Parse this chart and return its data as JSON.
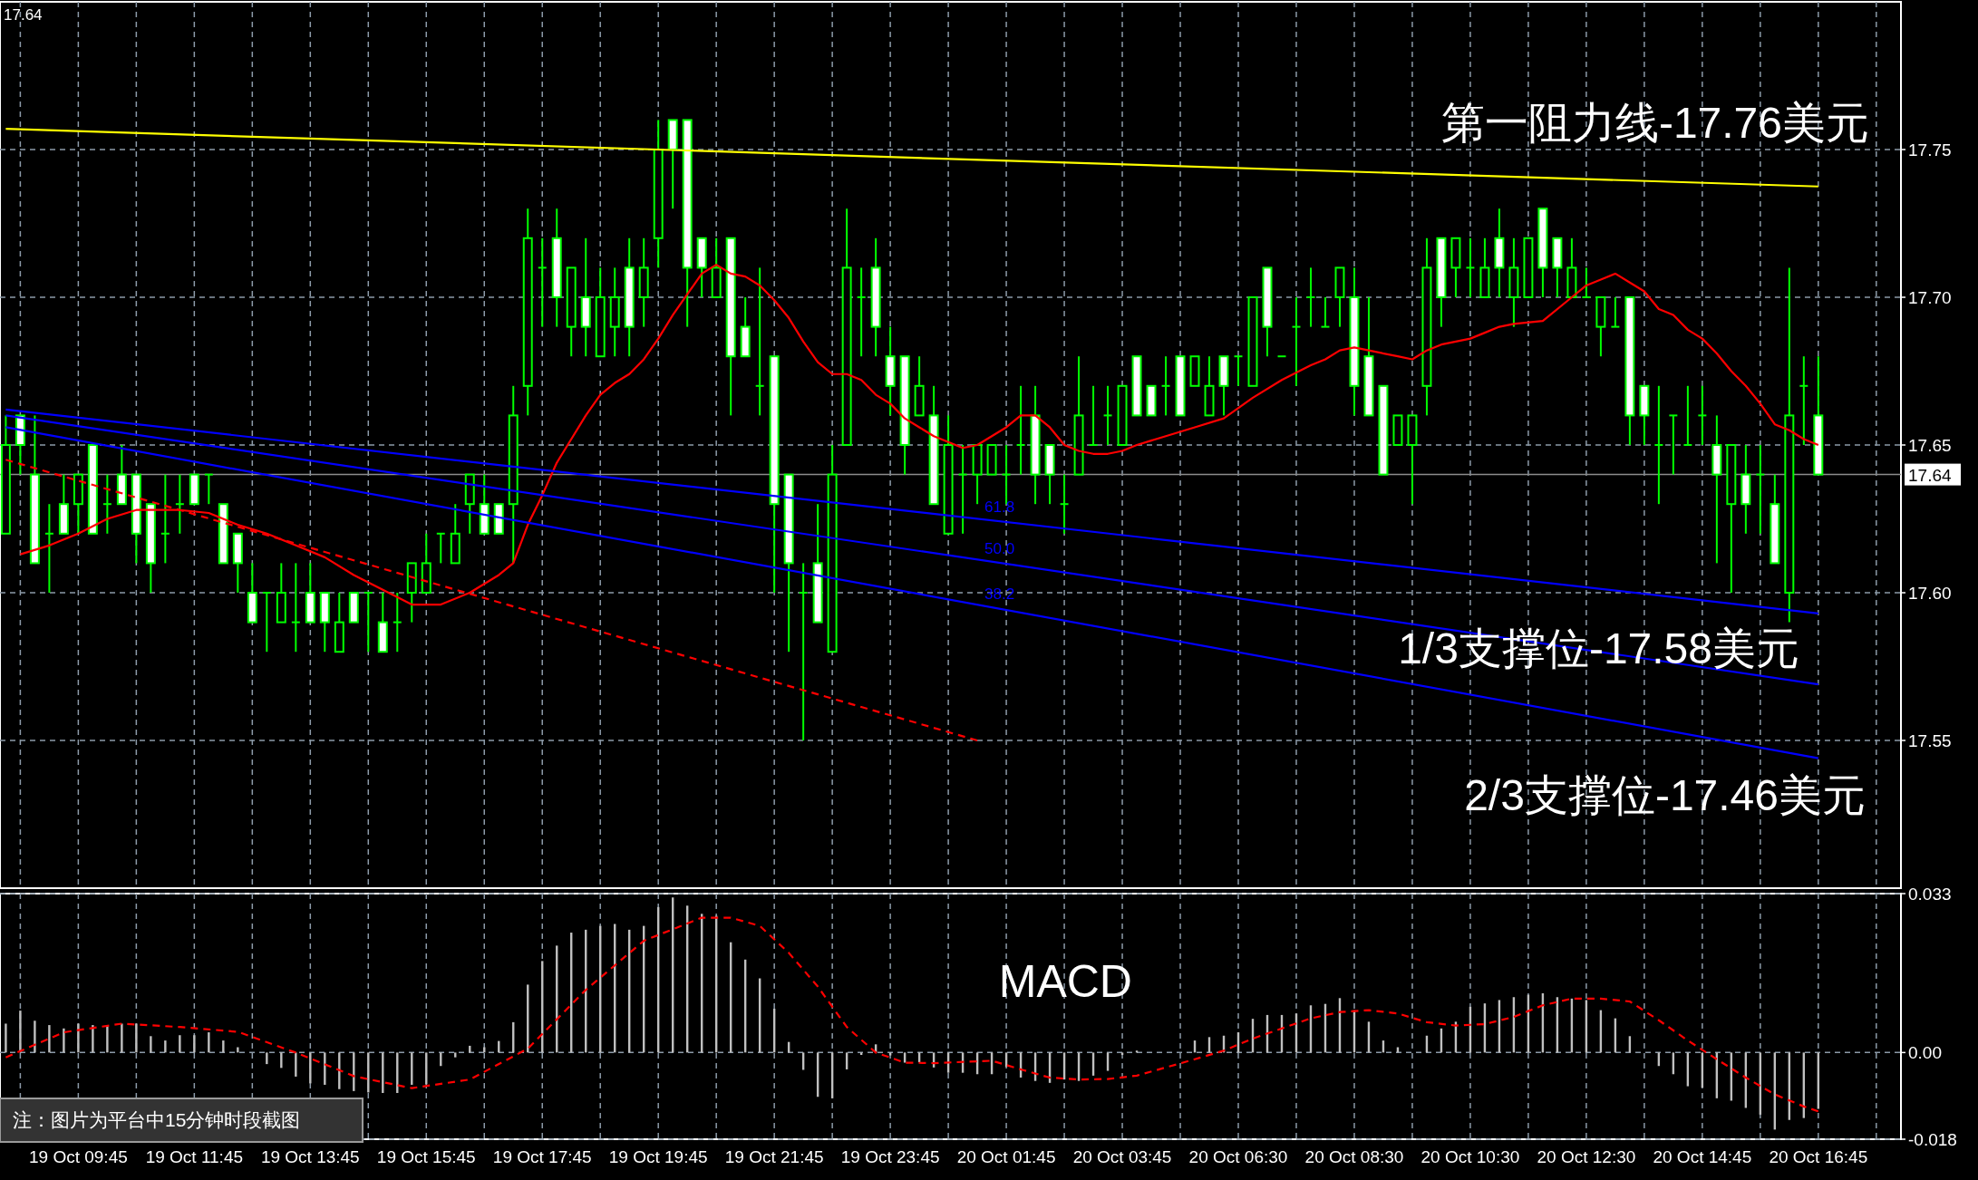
{
  "chart_data": [
    {
      "type": "candlestick",
      "color": "#00ff00",
      "tick_labels": "y",
      "grid": true,
      "categories": [
        null,
        null,
        null,
        null,
        null,
        null,
        null,
        null,
        null,
        null,
        null,
        null,
        null,
        null,
        null,
        null,
        null,
        null,
        null,
        null,
        null,
        null,
        null,
        null,
        null,
        null,
        null,
        null,
        null,
        null,
        null,
        null,
        null,
        null,
        null,
        null,
        null,
        null,
        null,
        null,
        null,
        null,
        null,
        null,
        null,
        null,
        null,
        null,
        null,
        null,
        null,
        null,
        null,
        null,
        null,
        null,
        null,
        null,
        null,
        null,
        null,
        null,
        null,
        null,
        null,
        null,
        null,
        null,
        null,
        null,
        null,
        null,
        null,
        null,
        null,
        null,
        null,
        null,
        null,
        null,
        null,
        null,
        null,
        null,
        null,
        null,
        null,
        null,
        null,
        null,
        null,
        null,
        null,
        null,
        null,
        null,
        null,
        null,
        null,
        null,
        null,
        null,
        null,
        null,
        null,
        null,
        null,
        null,
        null,
        null,
        null,
        null,
        null,
        null,
        null,
        null,
        null,
        null,
        null,
        null,
        null,
        null,
        null,
        null,
        null,
        null
      ],
      "ohlc": [
        [
          17.62,
          17.66,
          17.62,
          17.65
        ],
        [
          17.66,
          17.66,
          17.64,
          17.65
        ],
        [
          17.64,
          17.66,
          17.61,
          17.61
        ],
        [
          17.62,
          17.63,
          17.6,
          17.62
        ],
        [
          17.63,
          17.64,
          17.62,
          17.62
        ],
        [
          17.63,
          17.64,
          17.62,
          17.64
        ],
        [
          17.65,
          17.65,
          17.62,
          17.62
        ],
        [
          17.63,
          17.64,
          17.62,
          17.63
        ],
        [
          17.64,
          17.65,
          17.63,
          17.63
        ],
        [
          17.64,
          17.64,
          17.61,
          17.62
        ],
        [
          17.63,
          17.63,
          17.6,
          17.61
        ],
        [
          17.62,
          17.64,
          17.61,
          17.62
        ],
        [
          17.63,
          17.64,
          17.62,
          17.63
        ],
        [
          17.64,
          17.64,
          17.63,
          17.63
        ],
        [
          17.64,
          17.64,
          17.63,
          17.64
        ],
        [
          17.63,
          17.63,
          17.61,
          17.61
        ],
        [
          17.62,
          17.62,
          17.6,
          17.61
        ],
        [
          17.6,
          17.61,
          17.59,
          17.59
        ],
        [
          17.6,
          17.6,
          17.58,
          17.6
        ],
        [
          17.59,
          17.61,
          17.59,
          17.6
        ],
        [
          17.59,
          17.61,
          17.58,
          17.59
        ],
        [
          17.6,
          17.61,
          17.59,
          17.59
        ],
        [
          17.6,
          17.6,
          17.58,
          17.59
        ],
        [
          17.58,
          17.6,
          17.58,
          17.59
        ],
        [
          17.6,
          17.6,
          17.59,
          17.59
        ],
        [
          17.6,
          17.6,
          17.58,
          17.6
        ],
        [
          17.59,
          17.6,
          17.58,
          17.58
        ],
        [
          17.59,
          17.6,
          17.58,
          17.59
        ],
        [
          17.6,
          17.61,
          17.59,
          17.61
        ],
        [
          17.6,
          17.62,
          17.6,
          17.61
        ],
        [
          17.62,
          17.62,
          17.61,
          17.62
        ],
        [
          17.61,
          17.63,
          17.61,
          17.62
        ],
        [
          17.63,
          17.64,
          17.62,
          17.64
        ],
        [
          17.63,
          17.64,
          17.62,
          17.62
        ],
        [
          17.63,
          17.63,
          17.62,
          17.62
        ],
        [
          17.63,
          17.67,
          17.61,
          17.66
        ],
        [
          17.67,
          17.73,
          17.66,
          17.72
        ],
        [
          17.71,
          17.72,
          17.69,
          17.71
        ],
        [
          17.72,
          17.73,
          17.69,
          17.7
        ],
        [
          17.69,
          17.71,
          17.68,
          17.71
        ],
        [
          17.7,
          17.72,
          17.68,
          17.69
        ],
        [
          17.68,
          17.71,
          17.68,
          17.7
        ],
        [
          17.69,
          17.71,
          17.68,
          17.7
        ],
        [
          17.71,
          17.72,
          17.68,
          17.69
        ],
        [
          17.7,
          17.72,
          17.69,
          17.71
        ],
        [
          17.72,
          17.76,
          17.71,
          17.75
        ],
        [
          17.76,
          17.76,
          17.73,
          17.75
        ],
        [
          17.76,
          17.76,
          17.69,
          17.71
        ],
        [
          17.72,
          17.72,
          17.7,
          17.71
        ],
        [
          17.7,
          17.72,
          17.7,
          17.71
        ],
        [
          17.72,
          17.72,
          17.66,
          17.68
        ],
        [
          17.69,
          17.7,
          17.68,
          17.68
        ],
        [
          17.67,
          17.71,
          17.66,
          17.67
        ],
        [
          17.68,
          17.68,
          17.6,
          17.63
        ],
        [
          17.64,
          17.64,
          17.58,
          17.61
        ],
        [
          17.6,
          17.61,
          17.55,
          17.6
        ],
        [
          17.61,
          17.63,
          17.59,
          17.59
        ],
        [
          17.58,
          17.65,
          17.58,
          17.64
        ],
        [
          17.65,
          17.73,
          17.65,
          17.71
        ],
        [
          17.7,
          17.71,
          17.68,
          17.7
        ],
        [
          17.71,
          17.72,
          17.68,
          17.69
        ],
        [
          17.68,
          17.69,
          17.66,
          17.67
        ],
        [
          17.68,
          17.68,
          17.64,
          17.65
        ],
        [
          17.66,
          17.68,
          17.66,
          17.67
        ],
        [
          17.66,
          17.67,
          17.63,
          17.63
        ],
        [
          17.62,
          17.66,
          17.62,
          17.65
        ],
        [
          17.64,
          17.65,
          17.62,
          17.64
        ],
        [
          17.64,
          17.65,
          17.63,
          17.65
        ],
        [
          17.64,
          17.65,
          17.64,
          17.65
        ],
        [
          17.64,
          17.65,
          17.63,
          17.64
        ],
        [
          17.65,
          17.67,
          17.64,
          17.65
        ],
        [
          17.66,
          17.67,
          17.63,
          17.64
        ],
        [
          17.65,
          17.65,
          17.63,
          17.64
        ],
        [
          17.63,
          17.64,
          17.62,
          17.63
        ],
        [
          17.64,
          17.68,
          17.64,
          17.66
        ],
        [
          17.65,
          17.67,
          17.65,
          17.65
        ],
        [
          17.66,
          17.67,
          17.65,
          17.66
        ],
        [
          17.65,
          17.67,
          17.65,
          17.67
        ],
        [
          17.68,
          17.68,
          17.66,
          17.66
        ],
        [
          17.67,
          17.67,
          17.66,
          17.66
        ],
        [
          17.67,
          17.68,
          17.66,
          17.67
        ],
        [
          17.68,
          17.68,
          17.66,
          17.66
        ],
        [
          17.67,
          17.68,
          17.67,
          17.68
        ],
        [
          17.66,
          17.68,
          17.66,
          17.67
        ],
        [
          17.68,
          17.68,
          17.66,
          17.67
        ],
        [
          17.68,
          17.68,
          17.67,
          17.68
        ],
        [
          17.67,
          17.7,
          17.67,
          17.7
        ],
        [
          17.71,
          17.71,
          17.68,
          17.69
        ],
        [
          17.68,
          17.68,
          17.68,
          17.68
        ],
        [
          17.69,
          17.7,
          17.67,
          17.69
        ],
        [
          17.7,
          17.71,
          17.69,
          17.7
        ],
        [
          17.69,
          17.7,
          17.69,
          17.69
        ],
        [
          17.7,
          17.71,
          17.69,
          17.71
        ],
        [
          17.7,
          17.71,
          17.66,
          17.67
        ],
        [
          17.68,
          17.7,
          17.66,
          17.66
        ],
        [
          17.67,
          17.67,
          17.64,
          17.64
        ],
        [
          17.65,
          17.66,
          17.65,
          17.66
        ],
        [
          17.65,
          17.66,
          17.63,
          17.66
        ],
        [
          17.67,
          17.72,
          17.66,
          17.71
        ],
        [
          17.72,
          17.72,
          17.69,
          17.7
        ],
        [
          17.71,
          17.72,
          17.7,
          17.72
        ],
        [
          17.71,
          17.72,
          17.7,
          17.71
        ],
        [
          17.7,
          17.72,
          17.7,
          17.71
        ],
        [
          17.72,
          17.73,
          17.7,
          17.71
        ],
        [
          17.7,
          17.72,
          17.69,
          17.71
        ],
        [
          17.7,
          17.72,
          17.7,
          17.72
        ],
        [
          17.73,
          17.73,
          17.7,
          17.71
        ],
        [
          17.72,
          17.72,
          17.7,
          17.71
        ],
        [
          17.7,
          17.72,
          17.7,
          17.71
        ],
        [
          17.7,
          17.71,
          17.7,
          17.7
        ],
        [
          17.69,
          17.7,
          17.68,
          17.7
        ],
        [
          17.69,
          17.7,
          17.69,
          17.69
        ],
        [
          17.7,
          17.7,
          17.65,
          17.66
        ],
        [
          17.67,
          17.67,
          17.65,
          17.66
        ],
        [
          17.65,
          17.67,
          17.63,
          17.65
        ],
        [
          17.66,
          17.66,
          17.64,
          17.66
        ],
        [
          17.65,
          17.67,
          17.65,
          17.65
        ],
        [
          17.66,
          17.67,
          17.65,
          17.66
        ],
        [
          17.65,
          17.66,
          17.61,
          17.64
        ],
        [
          17.63,
          17.65,
          17.6,
          17.65
        ],
        [
          17.64,
          17.65,
          17.62,
          17.63
        ],
        [
          17.64,
          17.65,
          17.62,
          17.64
        ],
        [
          17.63,
          17.64,
          17.61,
          17.61
        ],
        [
          17.6,
          17.71,
          17.59,
          17.66
        ],
        [
          17.67,
          17.68,
          17.65,
          17.67
        ],
        [
          17.66,
          17.68,
          17.64,
          17.64
        ]
      ],
      "series": [
        {
          "type": "line",
          "color": "#ff0000",
          "values": [
            null,
            17.613,
            null,
            17.616,
            null,
            17.62,
            null,
            17.625,
            null,
            17.628,
            17.628,
            null,
            17.628,
            null,
            17.627,
            null,
            17.623,
            null,
            17.62,
            null,
            17.616,
            null,
            17.612,
            null,
            17.606,
            null,
            17.601,
            null,
            17.596,
            null,
            17.596,
            null,
            17.6,
            null,
            17.606,
            17.61,
            17.623,
            17.633,
            17.644,
            17.652,
            17.66,
            17.667,
            17.671,
            17.674,
            17.679,
            17.686,
            17.694,
            17.701,
            17.708,
            17.711,
            17.708,
            17.707,
            17.704,
            17.699,
            17.693,
            17.685,
            17.678,
            17.674,
            17.674,
            17.672,
            17.667,
            17.664,
            17.659,
            17.656,
            17.653,
            17.651,
            17.649,
            17.65,
            17.653,
            17.656,
            17.66,
            17.66,
            17.656,
            17.65,
            17.648,
            17.647,
            17.647,
            17.648,
            17.65,
            null,
            17.653,
            null,
            17.656,
            null,
            17.659,
            null,
            17.666,
            null,
            17.672,
            null,
            17.677,
            17.679,
            17.682,
            17.683,
            17.682,
            null,
            17.68,
            17.679,
            17.682,
            17.684,
            null,
            17.686,
            17.688,
            17.69,
            17.691,
            null,
            17.692,
            null,
            17.7,
            17.704,
            17.706,
            17.708,
            17.705,
            17.702,
            17.696,
            17.694,
            17.689,
            17.686,
            17.681,
            17.675,
            17.67,
            17.664,
            17.657,
            17.655,
            17.652,
            17.65
          ]
        },
        {
          "type": "line",
          "color": "#ff0000",
          "line_style": "dashed",
          "values": [
            17.645,
            null,
            null,
            null,
            null,
            null,
            null,
            null,
            null,
            null,
            null,
            null,
            null,
            null,
            null,
            null,
            null,
            null,
            null,
            null,
            null,
            null,
            null,
            null,
            null,
            null,
            null,
            null,
            null,
            null,
            null,
            null,
            null,
            null,
            null,
            null,
            null,
            null,
            null,
            null,
            null,
            null,
            null,
            null,
            null,
            null,
            null,
            null,
            null,
            null,
            null,
            null,
            null,
            null,
            null,
            null,
            null,
            null,
            null,
            null,
            null,
            null,
            null,
            null,
            null,
            null,
            null,
            17.55,
            null,
            null,
            null,
            null,
            null,
            null,
            null,
            null,
            null,
            null,
            null,
            null,
            null,
            null,
            null,
            null,
            null,
            null,
            null,
            null,
            null,
            null,
            null,
            null,
            null,
            null,
            null,
            null,
            null,
            null,
            null,
            null,
            null,
            null,
            null,
            null,
            null,
            null,
            null,
            null,
            null,
            null,
            null,
            null,
            null,
            null,
            null,
            null,
            null,
            null,
            null,
            null,
            null,
            null,
            null,
            null,
            null,
            null
          ]
        },
        {
          "type": "line",
          "color": "#ffff00",
          "values": [
            17.757,
            null,
            null,
            null,
            null,
            null,
            null,
            null,
            null,
            null,
            null,
            null,
            null,
            null,
            null,
            null,
            null,
            null,
            null,
            null,
            null,
            null,
            null,
            null,
            null,
            null,
            null,
            null,
            null,
            null,
            null,
            null,
            null,
            null,
            null,
            null,
            null,
            null,
            null,
            null,
            null,
            null,
            null,
            null,
            null,
            null,
            null,
            null,
            null,
            null,
            null,
            null,
            null,
            null,
            null,
            null,
            null,
            null,
            null,
            null,
            null,
            null,
            null,
            null,
            null,
            null,
            null,
            null,
            null,
            null,
            null,
            null,
            null,
            null,
            null,
            null,
            null,
            null,
            null,
            null,
            null,
            null,
            null,
            null,
            null,
            null,
            null,
            null,
            null,
            null,
            null,
            null,
            null,
            null,
            null,
            null,
            null,
            null,
            null,
            null,
            null,
            null,
            null,
            null,
            null,
            null,
            null,
            null,
            null,
            null,
            null,
            null,
            null,
            null,
            null,
            null,
            null,
            null,
            null,
            null,
            null,
            null,
            null,
            null,
            null,
            17.7375
          ]
        },
        {
          "type": "line",
          "color": "#0000ff",
          "name": "61.8",
          "values": [
            17.662,
            null,
            null,
            null,
            null,
            null,
            null,
            null,
            null,
            null,
            null,
            null,
            null,
            null,
            null,
            null,
            null,
            null,
            null,
            null,
            null,
            null,
            null,
            null,
            null,
            null,
            null,
            null,
            null,
            null,
            null,
            null,
            null,
            null,
            null,
            null,
            null,
            null,
            null,
            null,
            null,
            null,
            null,
            null,
            null,
            null,
            null,
            null,
            null,
            null,
            null,
            null,
            null,
            null,
            null,
            null,
            null,
            null,
            null,
            null,
            null,
            null,
            null,
            null,
            null,
            null,
            null,
            null,
            null,
            null,
            null,
            null,
            null,
            null,
            null,
            null,
            null,
            null,
            null,
            null,
            null,
            null,
            null,
            null,
            null,
            null,
            null,
            null,
            null,
            null,
            null,
            null,
            null,
            null,
            null,
            null,
            null,
            null,
            null,
            null,
            null,
            null,
            null,
            null,
            null,
            null,
            null,
            null,
            null,
            null,
            null,
            null,
            null,
            null,
            null,
            null,
            null,
            null,
            null,
            null,
            null,
            null,
            null,
            null,
            null,
            17.593
          ]
        },
        {
          "type": "line",
          "color": "#0000ff",
          "name": "50.0",
          "values": [
            17.66,
            null,
            null,
            null,
            null,
            null,
            null,
            null,
            null,
            null,
            null,
            null,
            null,
            null,
            null,
            null,
            null,
            null,
            null,
            null,
            null,
            null,
            null,
            null,
            null,
            null,
            null,
            null,
            null,
            null,
            null,
            null,
            null,
            null,
            null,
            null,
            null,
            null,
            null,
            null,
            null,
            null,
            null,
            null,
            null,
            null,
            null,
            null,
            null,
            null,
            null,
            null,
            null,
            null,
            null,
            null,
            null,
            null,
            null,
            null,
            null,
            null,
            null,
            null,
            null,
            null,
            null,
            null,
            null,
            null,
            null,
            null,
            null,
            null,
            null,
            null,
            null,
            null,
            null,
            null,
            null,
            null,
            null,
            null,
            null,
            null,
            null,
            null,
            null,
            null,
            null,
            null,
            null,
            null,
            null,
            null,
            null,
            null,
            null,
            null,
            null,
            null,
            null,
            null,
            null,
            null,
            null,
            null,
            null,
            null,
            null,
            null,
            null,
            null,
            null,
            null,
            null,
            null,
            null,
            null,
            null,
            null,
            null,
            null,
            null,
            17.569
          ]
        },
        {
          "type": "line",
          "color": "#0000ff",
          "name": "38.2",
          "values": [
            17.656,
            null,
            null,
            null,
            null,
            null,
            null,
            null,
            null,
            null,
            null,
            null,
            null,
            null,
            null,
            null,
            null,
            null,
            null,
            null,
            null,
            null,
            null,
            null,
            null,
            null,
            null,
            null,
            null,
            null,
            null,
            null,
            null,
            null,
            null,
            null,
            null,
            null,
            null,
            null,
            null,
            null,
            null,
            null,
            null,
            null,
            null,
            null,
            null,
            null,
            null,
            null,
            null,
            null,
            null,
            null,
            null,
            null,
            null,
            null,
            null,
            null,
            null,
            null,
            null,
            null,
            null,
            null,
            null,
            null,
            null,
            null,
            null,
            null,
            null,
            null,
            null,
            null,
            null,
            null,
            null,
            null,
            null,
            null,
            null,
            null,
            null,
            null,
            null,
            null,
            null,
            null,
            null,
            null,
            null,
            null,
            null,
            null,
            null,
            null,
            null,
            null,
            null,
            null,
            null,
            null,
            null,
            null,
            null,
            null,
            null,
            null,
            null,
            null,
            null,
            null,
            null,
            null,
            null,
            null,
            null,
            null,
            null,
            null,
            null,
            17.544
          ]
        }
      ],
      "ylim": [
        17.5,
        17.8
      ],
      "yticks": [
        17.55,
        {
          "value": 17.6,
          "label": "17.60"
        },
        17.65,
        {
          "value": 17.7,
          "label": "17.70"
        },
        17.75
      ],
      "ref_lines": [
        {
          "axis": "y",
          "value": 17.64,
          "label": "17.64",
          "color": "#8c8c8c"
        }
      ],
      "annotations": [
        "第一阻力线-17.76美元",
        "1/3支撑位-17.58美元",
        "2/3支撑位-17.46美元",
        "17.64"
      ]
    },
    {
      "type": "bar",
      "grid": "y",
      "categories": [
        null,
        null,
        null,
        null,
        null,
        "19 Oct 09:45",
        null,
        null,
        null,
        null,
        null,
        null,
        null,
        "19 Oct 11:45",
        null,
        null,
        null,
        null,
        null,
        null,
        null,
        "19 Oct 13:45",
        null,
        null,
        null,
        null,
        null,
        null,
        null,
        "19 Oct 15:45",
        null,
        null,
        null,
        null,
        null,
        null,
        null,
        "19 Oct 17:45",
        null,
        null,
        null,
        null,
        null,
        null,
        null,
        "19 Oct 19:45",
        null,
        null,
        null,
        null,
        null,
        null,
        null,
        "19 Oct 21:45",
        null,
        null,
        null,
        null,
        null,
        null,
        null,
        "19 Oct 23:45",
        null,
        null,
        null,
        null,
        null,
        null,
        null,
        "20 Oct 01:45",
        null,
        null,
        null,
        null,
        null,
        null,
        null,
        "20 Oct 03:45",
        null,
        null,
        null,
        null,
        null,
        null,
        null,
        "20 Oct 06:30",
        null,
        null,
        null,
        null,
        null,
        null,
        null,
        "20 Oct 08:30",
        null,
        null,
        null,
        null,
        null,
        null,
        null,
        "20 Oct 10:30",
        null,
        null,
        null,
        null,
        null,
        null,
        null,
        "20 Oct 12:30",
        null,
        null,
        null,
        null,
        null,
        null,
        null,
        "20 Oct 14:45",
        null,
        null,
        null,
        null,
        null,
        null,
        null,
        "20 Oct 16:45"
      ],
      "series": [
        {
          "type": "bar",
          "color": "#c0c0c0",
          "values": [
            0.006,
            0.0087,
            0.0066,
            0.0057,
            0.005,
            0.006,
            0.0057,
            0.0057,
            0.006,
            0.006,
            0.0034,
            0.0025,
            0.0036,
            0.0036,
            0.0042,
            0.0025,
            0.0011,
            0,
            -0.0024,
            -0.0032,
            -0.005,
            -0.0064,
            -0.0067,
            -0.0076,
            -0.008,
            -0.0083,
            -0.0084,
            -0.0084,
            -0.0067,
            -0.0066,
            -0.0028,
            -0.001,
            0.0014,
            0.0011,
            0.0024,
            0.0063,
            0.0141,
            0.019,
            0.0222,
            0.0249,
            0.0255,
            0.0263,
            0.0267,
            0.0255,
            0.0263,
            0.0302,
            0.0322,
            0.0305,
            0.0288,
            0.0284,
            0.0229,
            0.0193,
            0.0154,
            0.0091,
            0.0022,
            -0.0036,
            -0.0092,
            -0.0095,
            -0.0035,
            -0.0005,
            0.0017,
            -0.0006,
            -0.0021,
            -0.002,
            -0.0031,
            -0.0042,
            -0.0042,
            -0.0045,
            -0.0045,
            -0.003,
            -0.0052,
            -0.0059,
            -0.0063,
            -0.0056,
            -0.0059,
            -0.0048,
            -0.0038,
            -0.0005,
            0.0004,
            0,
            0,
            0,
            0.0025,
            0.0032,
            0.0035,
            0.0042,
            0.007,
            0.0078,
            0.0078,
            0.0081,
            0.0098,
            0.0101,
            0.0113,
            0.0088,
            0.0064,
            0.0025,
            0.0011,
            0,
            0.0035,
            0.005,
            0.0064,
            0.0095,
            0.0102,
            0.0109,
            0.0115,
            0.012,
            0.0123,
            0.0115,
            0.0112,
            0.0109,
            0.0088,
            0.0071,
            0.0034,
            0,
            -0.0028,
            -0.0045,
            -0.007,
            -0.0073,
            -0.0095,
            -0.01,
            -0.0115,
            -0.0129,
            -0.016,
            -0.014,
            -0.0136,
            -0.0117
          ]
        },
        {
          "type": "line",
          "color": "#ff0000",
          "line_style": "dashed",
          "values": [
            -0.001,
            null,
            null,
            null,
            0.0042,
            null,
            null,
            null,
            0.006,
            null,
            null,
            null,
            0.0053,
            null,
            null,
            null,
            0.0043,
            null,
            null,
            null,
            0,
            null,
            null,
            null,
            -0.0049,
            null,
            null,
            null,
            -0.0074,
            null,
            null,
            null,
            -0.0056,
            null,
            null,
            null,
            0.0008,
            null,
            null,
            null,
            0.013,
            null,
            null,
            null,
            0.0232,
            null,
            null,
            null,
            0.028,
            null,
            0.028,
            null,
            0.0263,
            null,
            0.0207,
            null,
            0.0137,
            null,
            0.0053,
            null,
            0,
            null,
            -0.0021,
            null,
            -0.0022,
            null,
            null,
            null,
            -0.0017,
            null,
            -0.0035,
            null,
            -0.0052,
            null,
            -0.0056,
            null,
            -0.0055,
            null,
            -0.0048,
            null,
            -0.0031,
            null,
            -0.0014,
            null,
            0.0004,
            null,
            0.0029,
            null,
            0.005,
            null,
            0.0071,
            null,
            0.0084,
            null,
            0.0088,
            null,
            0.0081,
            null,
            0.0063,
            null,
            0.0056,
            null,
            0.0059,
            null,
            0.0074,
            null,
            0.0098,
            null,
            0.0112,
            null,
            0.0112,
            null,
            0.0106,
            null,
            0.0067,
            null,
            0.0025,
            null,
            -0.0014,
            null,
            -0.0052,
            null,
            -0.0087,
            null,
            -0.0112,
            -0.0122
          ]
        }
      ],
      "ylim": [
        -0.018,
        0.033
      ],
      "yticks": [
        -0.018,
        {
          "value": 0,
          "label": "0.00"
        },
        0.033
      ],
      "title": "MACD",
      "annotations": [
        "注：图片为平台中15分钟时段截图"
      ]
    }
  ]
}
